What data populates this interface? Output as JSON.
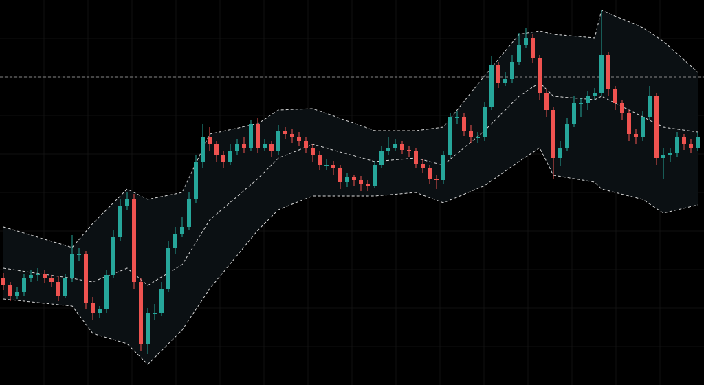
{
  "chart_data": {
    "type": "candlestick",
    "ylim": [
      0,
      560
    ],
    "up_color": "#26a69a",
    "down_color": "#ef5350",
    "band_color": "#d8d8d8",
    "band_fill": "#0b1013",
    "background": "#000000",
    "open": [
      155,
      145,
      130,
      135,
      155,
      160,
      162,
      155,
      150,
      130,
      155,
      190,
      190,
      120,
      105,
      110,
      160,
      215,
      260,
      270,
      150,
      60,
      105,
      105,
      140,
      200,
      220,
      230,
      270,
      325,
      360,
      350,
      335,
      325,
      340,
      350,
      345,
      380,
      345,
      350,
      340,
      370,
      365,
      360,
      355,
      345,
      335,
      320,
      320,
      315,
      295,
      302,
      298,
      292,
      290,
      320,
      340,
      345,
      350,
      342,
      340,
      322,
      315,
      300,
      298,
      335,
      390,
      390,
      370,
      360,
      360,
      405,
      465,
      440,
      445,
      470,
      495,
      505,
      475,
      425,
      400,
      330,
      345,
      380,
      410,
      410,
      420,
      425,
      480,
      430,
      410,
      395,
      365,
      360,
      390,
      420,
      330,
      335,
      338,
      360,
      350,
      345
    ],
    "high": [
      163,
      150,
      142,
      162,
      168,
      170,
      168,
      160,
      158,
      162,
      218,
      200,
      195,
      128,
      115,
      168,
      225,
      270,
      280,
      278,
      155,
      112,
      118,
      150,
      210,
      230,
      245,
      280,
      335,
      380,
      375,
      355,
      340,
      350,
      358,
      360,
      385,
      388,
      358,
      355,
      378,
      375,
      372,
      368,
      360,
      350,
      340,
      328,
      326,
      320,
      308,
      306,
      304,
      298,
      326,
      348,
      360,
      358,
      355,
      348,
      345,
      328,
      320,
      305,
      340,
      395,
      398,
      395,
      378,
      368,
      412,
      478,
      470,
      455,
      480,
      512,
      520,
      510,
      480,
      430,
      405,
      355,
      388,
      420,
      418,
      428,
      432,
      545,
      485,
      435,
      415,
      400,
      372,
      398,
      435,
      425,
      345,
      345,
      368,
      365,
      358,
      368
    ],
    "low": [
      138,
      122,
      125,
      130,
      150,
      152,
      148,
      142,
      122,
      126,
      150,
      180,
      110,
      95,
      98,
      105,
      155,
      210,
      255,
      140,
      50,
      45,
      95,
      100,
      135,
      190,
      215,
      225,
      265,
      315,
      340,
      325,
      315,
      320,
      335,
      338,
      340,
      338,
      340,
      332,
      335,
      358,
      352,
      348,
      338,
      325,
      312,
      312,
      305,
      285,
      288,
      290,
      282,
      282,
      286,
      315,
      335,
      340,
      336,
      332,
      315,
      308,
      292,
      285,
      292,
      330,
      380,
      362,
      352,
      352,
      355,
      400,
      432,
      435,
      440,
      465,
      490,
      468,
      415,
      390,
      300,
      318,
      340,
      375,
      390,
      400,
      415,
      420,
      420,
      400,
      385,
      355,
      350,
      355,
      385,
      320,
      300,
      325,
      332,
      342,
      338,
      340
    ],
    "close": [
      145,
      130,
      135,
      155,
      160,
      162,
      155,
      150,
      130,
      155,
      190,
      190,
      120,
      105,
      110,
      160,
      215,
      260,
      270,
      150,
      60,
      105,
      105,
      140,
      200,
      220,
      230,
      270,
      325,
      360,
      350,
      335,
      325,
      340,
      350,
      345,
      380,
      345,
      350,
      340,
      370,
      365,
      360,
      355,
      345,
      335,
      320,
      320,
      315,
      295,
      302,
      298,
      292,
      290,
      320,
      340,
      345,
      350,
      342,
      340,
      322,
      315,
      300,
      298,
      335,
      390,
      390,
      370,
      360,
      360,
      405,
      465,
      440,
      445,
      470,
      495,
      505,
      475,
      425,
      400,
      330,
      345,
      380,
      410,
      410,
      420,
      425,
      480,
      430,
      410,
      395,
      365,
      360,
      390,
      420,
      330,
      335,
      338,
      360,
      350,
      345,
      360
    ],
    "bands": {
      "x": [
        0,
        10,
        13,
        18,
        21,
        26,
        30,
        37,
        40,
        45,
        54,
        60,
        64,
        70,
        75,
        78,
        80,
        86,
        87,
        93,
        96,
        101
      ],
      "upper": [
        230,
        200,
        235,
        285,
        270,
        280,
        365,
        380,
        400,
        402,
        370,
        370,
        375,
        450,
        510,
        515,
        510,
        505,
        545,
        520,
        500,
        455
      ],
      "middle": [
        170,
        155,
        150,
        170,
        145,
        175,
        240,
        300,
        330,
        350,
        325,
        330,
        320,
        370,
        420,
        440,
        420,
        415,
        420,
        390,
        375,
        368
      ],
      "lower": [
        125,
        115,
        75,
        60,
        30,
        80,
        140,
        225,
        255,
        275,
        275,
        280,
        265,
        290,
        325,
        345,
        305,
        295,
        285,
        270,
        250,
        262
      ]
    },
    "hline": 448
  }
}
